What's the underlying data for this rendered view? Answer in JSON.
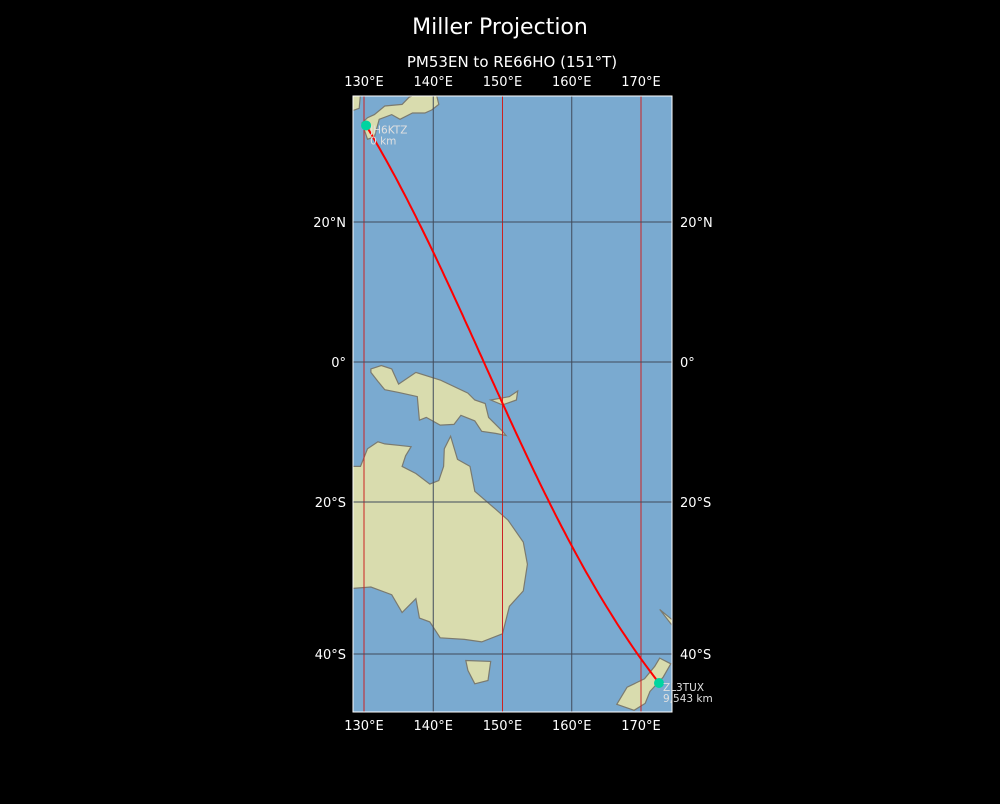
{
  "title": "Miller Projection",
  "subtitle": "PM53EN to RE66HO (151°T)",
  "map": {
    "projection": "miller",
    "lon_range": [
      128.4,
      174.5
    ],
    "lat_range": [
      -46.9,
      36.8
    ],
    "meridians": [
      130,
      140,
      150,
      160,
      170
    ],
    "parallels": [
      20,
      0,
      -20,
      -40
    ],
    "lon_labels": [
      "130°E",
      "140°E",
      "150°E",
      "160°E",
      "170°E"
    ],
    "lat_labels": [
      "20°N",
      "0°",
      "20°S",
      "40°S"
    ],
    "colors": {
      "ocean": "#7aaad0",
      "land": "#d9dcae",
      "path": "#ff0000",
      "marker": "#00d4a0",
      "grid_major": "#cc2222",
      "grid_minor": "#404a5a"
    }
  },
  "stations": [
    {
      "call": "JH6KTZ",
      "distance": "0 km",
      "lat": 33.0,
      "lon": 130.3
    },
    {
      "call": "ZL3TUX",
      "distance": "9,543 km",
      "lat": -43.5,
      "lon": 172.6
    }
  ]
}
